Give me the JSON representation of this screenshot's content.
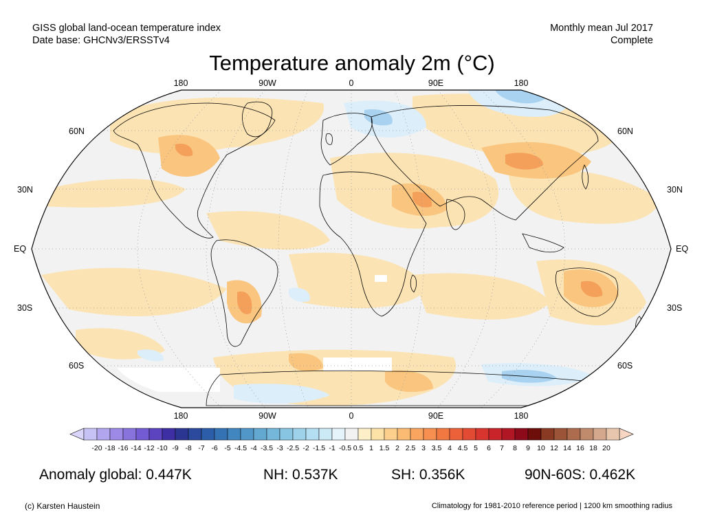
{
  "header": {
    "dataset_line1": "GISS global land-ocean temperature index",
    "dataset_line2": "Date base: GHCNv3/ERSSTv4",
    "period_line1": "Monthly mean Jul 2017",
    "period_line2": "Complete"
  },
  "title": "Temperature anomaly 2m (°C)",
  "map": {
    "projection": "Robinson",
    "lon_labels": [
      "180",
      "90W",
      "0",
      "90E",
      "180"
    ],
    "lat_labels_left": [
      "60N",
      "30N",
      "EQ",
      "30S",
      "60S"
    ],
    "lat_labels_right": [
      "60N",
      "30N",
      "EQ",
      "30S",
      "60S"
    ],
    "colors": {
      "ocean_neutral": "#f2f2f2",
      "land_border": "#000000",
      "gridline": "#999999",
      "warm_light": "#fbe3b4",
      "warm_mid": "#f9c57f",
      "warm_strong": "#f4a05a",
      "cool_light": "#dbeefa",
      "cool_mid": "#a8d2ef",
      "no_data": "#ffffff"
    }
  },
  "colorbar": {
    "ticks": [
      "-20",
      "-18",
      "-16",
      "-14",
      "-12",
      "-10",
      "-9",
      "-8",
      "-7",
      "-6",
      "-5",
      "-4.5",
      "-4",
      "-3.5",
      "-3",
      "-2.5",
      "-2",
      "-1.5",
      "-1",
      "-0.5",
      "0.5",
      "1",
      "1.5",
      "2",
      "2.5",
      "3",
      "3.5",
      "4",
      "4.5",
      "5",
      "6",
      "7",
      "8",
      "9",
      "10",
      "12",
      "14",
      "16",
      "18",
      "20"
    ],
    "colors": [
      "#c7c2f5",
      "#b1a6ee",
      "#9c8ae6",
      "#8873dd",
      "#735bd3",
      "#5c44c1",
      "#3e2ea4",
      "#2b3692",
      "#2b4a9e",
      "#2c5da9",
      "#3572b4",
      "#4286bf",
      "#5197c8",
      "#62a8d1",
      "#74b7da",
      "#88c5e2",
      "#9dd2ea",
      "#b4def1",
      "#cce9f6",
      "#e5f4fb",
      "#f2f2f2",
      "#fdf0c8",
      "#fde2a8",
      "#fcd08c",
      "#fbbb73",
      "#f9a560",
      "#f68f4f",
      "#f27842",
      "#ec613a",
      "#e34a33",
      "#d8352f",
      "#c8242a",
      "#b01624",
      "#8c0a1a",
      "#6e0e0a",
      "#8a3a22",
      "#9b5437",
      "#ad6c4e",
      "#c08a6c",
      "#d3a88c",
      "#e8c6ae"
    ],
    "left_arrow_color": "#d9d4f9",
    "right_arrow_color": "#f6d5c2"
  },
  "stats": {
    "global": "Anomaly global: 0.447K",
    "nh": "NH: 0.537K",
    "sh": "SH: 0.356K",
    "high_lat": "90N-60S: 0.462K"
  },
  "footer": {
    "credit": "(c) Karsten Haustein",
    "note": "Climatology for 1981-2010 reference period | 1200 km smoothing radius"
  }
}
